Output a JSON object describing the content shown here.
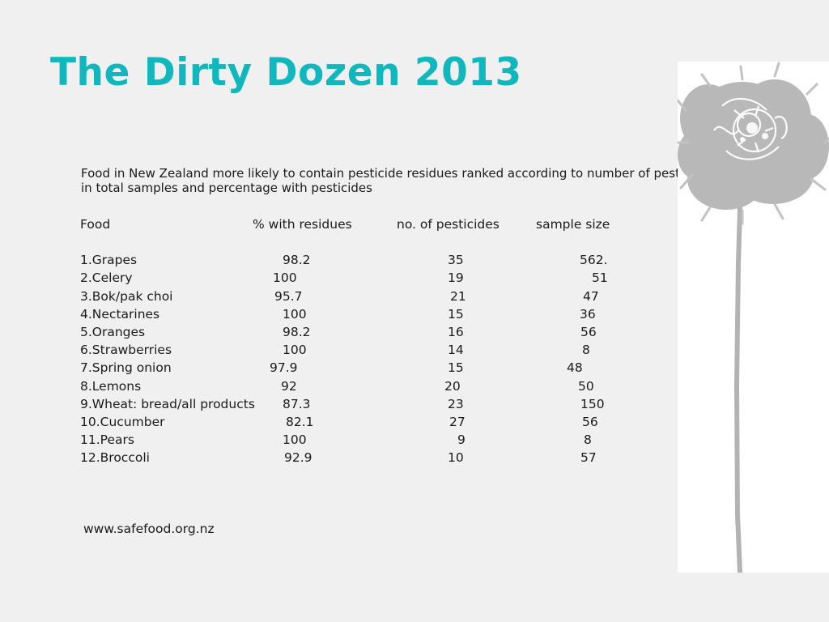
{
  "slide": {
    "title": "The Dirty Dozen 2013",
    "subtitle": "Food in New Zealand more likely to contain pesticide residues ranked according to number of pesticides detected in total samples and percentage with pesticides",
    "footer": "www.safefood.org.nz",
    "accent_color": "#10b8bd",
    "image_icon": "dandelion-seedhead-icon"
  },
  "table": {
    "headers": [
      "Food",
      "% with residues",
      "no. of pesticides",
      "sample size"
    ],
    "rows": [
      {
        "food": "1.Grapes",
        "residues": "98.2",
        "pesticides": "35",
        "sample": "562."
      },
      {
        "food": "2.Celery",
        "residues": "100",
        "pesticides": "19",
        "sample": "51"
      },
      {
        "food": "3.Bok/pak choi",
        "residues": "95.7",
        "pesticides": "21",
        "sample": "47"
      },
      {
        "food": "4.Nectarines",
        "residues": "100",
        "pesticides": "15",
        "sample": "36"
      },
      {
        "food": "5.Oranges",
        "residues": "98.2",
        "pesticides": "16",
        "sample": "56"
      },
      {
        "food": "6.Strawberries",
        "residues": "100",
        "pesticides": "14",
        "sample": "8"
      },
      {
        "food": "7.Spring onion",
        "residues": "97.9",
        "pesticides": "15",
        "sample": "48"
      },
      {
        "food": "8.Lemons",
        "residues": "92",
        "pesticides": "20",
        "sample": "50"
      },
      {
        "food": "9.Wheat: bread/all products",
        "residues": "87.3",
        "pesticides": "23",
        "sample": "150"
      },
      {
        "food": "10.Cucumber",
        "residues": "82.1",
        "pesticides": "27",
        "sample": "56"
      },
      {
        "food": "11.Pears",
        "residues": "100",
        "pesticides": "9",
        "sample": "8"
      },
      {
        "food": "12.Broccoli",
        "residues": "92.9",
        "pesticides": "10",
        "sample": "57"
      }
    ]
  }
}
